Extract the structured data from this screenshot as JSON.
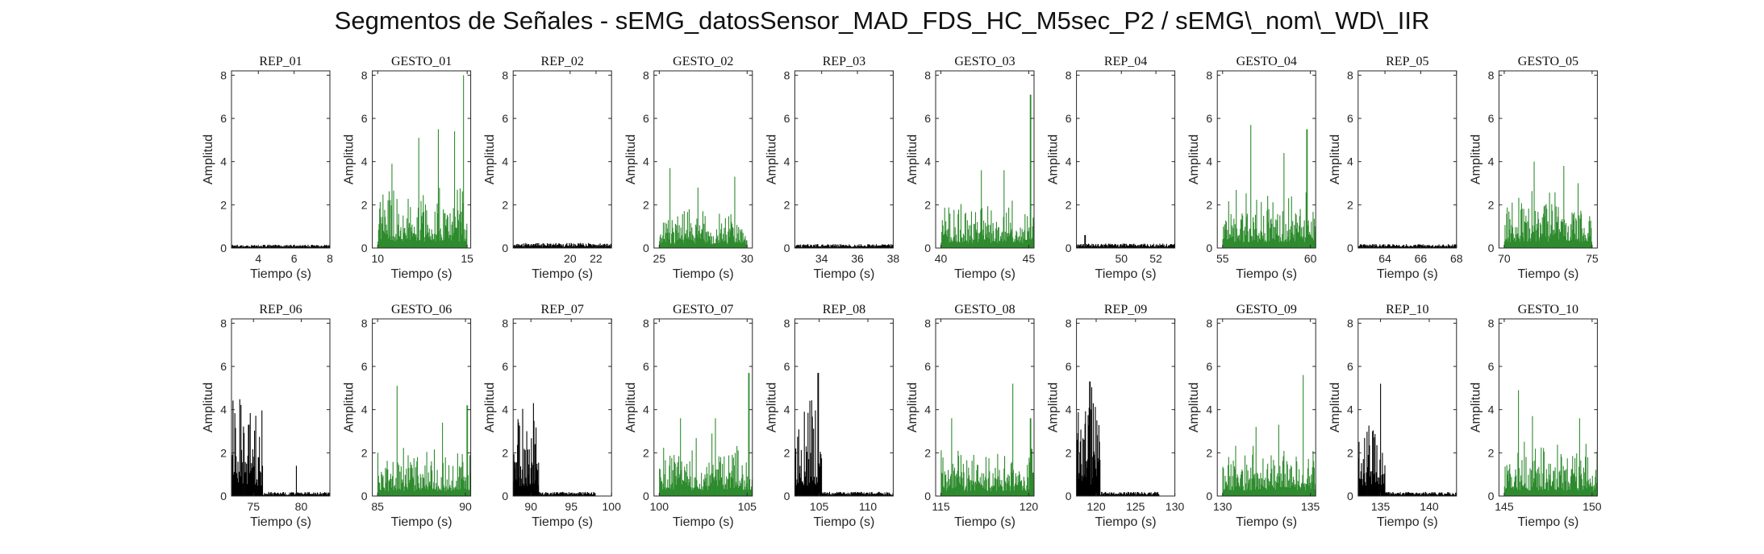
{
  "figure_title": "Segmentos de Señales - sEMG_datosSensor_MAD_FDS_HC_M5sec_P2 / sEMG\\_nom\\_WD\\_IIR",
  "colors": {
    "rep": "#000000",
    "gesto": "#2e8b2e",
    "axis": "#262626"
  },
  "chart_data": [
    {
      "type": "bar",
      "title": "REP_01",
      "xlabel": "Tiempo (s)",
      "ylabel": "Amplitud",
      "xlim": [
        2.5,
        8
      ],
      "ylim": [
        0,
        8.2
      ],
      "xticks": [
        4,
        6,
        8
      ],
      "yticks": [
        0,
        2,
        4,
        6,
        8
      ],
      "segment": [
        2.5,
        8
      ],
      "color_key": "rep",
      "level": 0.12,
      "peaks": [],
      "seed": 1
    },
    {
      "type": "bar",
      "title": "GESTO_01",
      "xlabel": "Tiempo (s)",
      "ylabel": "Amplitud",
      "xlim": [
        9.7,
        15.2
      ],
      "ylim": [
        0,
        8.2
      ],
      "xticks": [
        10,
        15
      ],
      "yticks": [
        0,
        2,
        4,
        6,
        8
      ],
      "segment": [
        10,
        15
      ],
      "color_key": "gesto",
      "level": 1.2,
      "peaks": [
        [
          10.8,
          3.9
        ],
        [
          12.3,
          5.1
        ],
        [
          13.4,
          5.5
        ],
        [
          14.3,
          5.4
        ],
        [
          14.8,
          8.0
        ]
      ],
      "seed": 2
    },
    {
      "type": "bar",
      "title": "REP_02",
      "xlabel": "Tiempo (s)",
      "ylabel": "Amplitud",
      "xlim": [
        15.6,
        23.2
      ],
      "ylim": [
        0,
        8.2
      ],
      "xticks": [
        20,
        22
      ],
      "yticks": [
        0,
        2,
        4,
        6,
        8
      ],
      "segment": [
        15.6,
        23.2
      ],
      "color_key": "rep",
      "level": 0.18,
      "peaks": [],
      "seed": 3
    },
    {
      "type": "bar",
      "title": "GESTO_02",
      "xlabel": "Tiempo (s)",
      "ylabel": "Amplitud",
      "xlim": [
        24.7,
        30.3
      ],
      "ylim": [
        0,
        8.2
      ],
      "xticks": [
        25,
        30
      ],
      "yticks": [
        0,
        2,
        4,
        6,
        8
      ],
      "segment": [
        25,
        30
      ],
      "color_key": "gesto",
      "level": 0.7,
      "peaks": [
        [
          25.6,
          3.7
        ],
        [
          27.2,
          2.8
        ],
        [
          29.3,
          3.3
        ]
      ],
      "seed": 4
    },
    {
      "type": "bar",
      "title": "REP_03",
      "xlabel": "Tiempo (s)",
      "ylabel": "Amplitud",
      "xlim": [
        32.5,
        38
      ],
      "ylim": [
        0,
        8.2
      ],
      "xticks": [
        34,
        36,
        38
      ],
      "yticks": [
        0,
        2,
        4,
        6,
        8
      ],
      "segment": [
        32.5,
        38
      ],
      "color_key": "rep",
      "level": 0.14,
      "peaks": [],
      "seed": 5
    },
    {
      "type": "bar",
      "title": "GESTO_03",
      "xlabel": "Tiempo (s)",
      "ylabel": "Amplitud",
      "xlim": [
        39.7,
        45.3
      ],
      "ylim": [
        0,
        8.2
      ],
      "xticks": [
        40,
        45
      ],
      "yticks": [
        0,
        2,
        4,
        6,
        8
      ],
      "segment": [
        40,
        45.3
      ],
      "color_key": "gesto",
      "level": 0.9,
      "peaks": [
        [
          42.3,
          3.6
        ],
        [
          43.6,
          3.6
        ],
        [
          45.1,
          7.1
        ]
      ],
      "seed": 6
    },
    {
      "type": "bar",
      "title": "REP_04",
      "xlabel": "Tiempo (s)",
      "ylabel": "Amplitud",
      "xlim": [
        47.4,
        53.1
      ],
      "ylim": [
        0,
        8.2
      ],
      "xticks": [
        50,
        52
      ],
      "yticks": [
        0,
        2,
        4,
        6,
        8
      ],
      "segment": [
        47.4,
        53.1
      ],
      "color_key": "rep",
      "level": 0.16,
      "peaks": [
        [
          47.9,
          0.6
        ]
      ],
      "seed": 7
    },
    {
      "type": "bar",
      "title": "GESTO_04",
      "xlabel": "Tiempo (s)",
      "ylabel": "Amplitud",
      "xlim": [
        54.7,
        60.3
      ],
      "ylim": [
        0,
        8.2
      ],
      "xticks": [
        55,
        60
      ],
      "yticks": [
        0,
        2,
        4,
        6,
        8
      ],
      "segment": [
        55,
        60.3
      ],
      "color_key": "gesto",
      "level": 1.1,
      "peaks": [
        [
          56.6,
          5.7
        ],
        [
          58.5,
          4.4
        ],
        [
          59.8,
          5.5
        ]
      ],
      "seed": 8
    },
    {
      "type": "bar",
      "title": "REP_05",
      "xlabel": "Tiempo (s)",
      "ylabel": "Amplitud",
      "xlim": [
        62.5,
        68
      ],
      "ylim": [
        0,
        8.2
      ],
      "xticks": [
        64,
        66,
        68
      ],
      "yticks": [
        0,
        2,
        4,
        6,
        8
      ],
      "segment": [
        62.5,
        68
      ],
      "color_key": "rep",
      "level": 0.14,
      "peaks": [],
      "seed": 9
    },
    {
      "type": "bar",
      "title": "GESTO_05",
      "xlabel": "Tiempo (s)",
      "ylabel": "Amplitud",
      "xlim": [
        69.7,
        75.3
      ],
      "ylim": [
        0,
        8.2
      ],
      "xticks": [
        70,
        75
      ],
      "yticks": [
        0,
        2,
        4,
        6,
        8
      ],
      "segment": [
        70,
        75
      ],
      "color_key": "gesto",
      "level": 1.1,
      "peaks": [
        [
          71.7,
          4.0
        ],
        [
          73.4,
          3.8
        ],
        [
          74.2,
          3.0
        ]
      ],
      "seed": 10
    },
    {
      "type": "bar",
      "title": "REP_06",
      "xlabel": "Tiempo (s)",
      "ylabel": "Amplitud",
      "xlim": [
        72.7,
        83
      ],
      "ylim": [
        0,
        8.2
      ],
      "xticks": [
        75,
        80
      ],
      "yticks": [
        0,
        2,
        4,
        6,
        8
      ],
      "segment": [
        72.7,
        83
      ],
      "color_key": "rep",
      "level": 0.15,
      "burst": [
        72.7,
        76
      ],
      "burst_level": 1.9,
      "peaks": [
        [
          74.5,
          3.3
        ],
        [
          79.5,
          1.4
        ]
      ],
      "seed": 11
    },
    {
      "type": "bar",
      "title": "GESTO_06",
      "xlabel": "Tiempo (s)",
      "ylabel": "Amplitud",
      "xlim": [
        84.7,
        90.3
      ],
      "ylim": [
        0,
        8.2
      ],
      "xticks": [
        85,
        90
      ],
      "yticks": [
        0,
        2,
        4,
        6,
        8
      ],
      "segment": [
        85,
        90.3
      ],
      "color_key": "gesto",
      "level": 0.9,
      "peaks": [
        [
          86.1,
          5.1
        ],
        [
          88.7,
          3.4
        ],
        [
          90.1,
          4.2
        ]
      ],
      "seed": 12
    },
    {
      "type": "bar",
      "title": "REP_07",
      "xlabel": "Tiempo (s)",
      "ylabel": "Amplitud",
      "xlim": [
        87.8,
        100
      ],
      "ylim": [
        0,
        8.2
      ],
      "xticks": [
        90,
        95,
        100
      ],
      "yticks": [
        0,
        2,
        4,
        6,
        8
      ],
      "segment": [
        87.8,
        98
      ],
      "color_key": "rep",
      "level": 0.15,
      "burst": [
        87.8,
        91
      ],
      "burst_level": 1.8,
      "peaks": [
        [
          90.3,
          4.3
        ],
        [
          89.5,
          3.0
        ]
      ],
      "seed": 13
    },
    {
      "type": "bar",
      "title": "GESTO_07",
      "xlabel": "Tiempo (s)",
      "ylabel": "Amplitud",
      "xlim": [
        99.7,
        105.3
      ],
      "ylim": [
        0,
        8.2
      ],
      "xticks": [
        100,
        105
      ],
      "yticks": [
        0,
        2,
        4,
        6,
        8
      ],
      "segment": [
        100,
        105.3
      ],
      "color_key": "gesto",
      "level": 1.1,
      "peaks": [
        [
          101.2,
          3.6
        ],
        [
          103.2,
          3.6
        ],
        [
          105.1,
          5.7
        ]
      ],
      "seed": 14
    },
    {
      "type": "bar",
      "title": "REP_08",
      "xlabel": "Tiempo (s)",
      "ylabel": "Amplitud",
      "xlim": [
        102.5,
        112.6
      ],
      "ylim": [
        0,
        8.2
      ],
      "xticks": [
        105,
        110
      ],
      "yticks": [
        0,
        2,
        4,
        6,
        8
      ],
      "segment": [
        102.5,
        112.6
      ],
      "color_key": "rep",
      "level": 0.15,
      "burst": [
        102.5,
        105.3
      ],
      "burst_level": 1.9,
      "peaks": [
        [
          104.9,
          5.7
        ],
        [
          103.5,
          3.9
        ]
      ],
      "seed": 15
    },
    {
      "type": "bar",
      "title": "GESTO_08",
      "xlabel": "Tiempo (s)",
      "ylabel": "Amplitud",
      "xlim": [
        114.7,
        120.3
      ],
      "ylim": [
        0,
        8.2
      ],
      "xticks": [
        115,
        120
      ],
      "yticks": [
        0,
        2,
        4,
        6,
        8
      ],
      "segment": [
        115,
        120.3
      ],
      "color_key": "gesto",
      "level": 0.9,
      "peaks": [
        [
          115.6,
          3.6
        ],
        [
          119.1,
          5.2
        ],
        [
          120.1,
          3.6
        ]
      ],
      "seed": 16
    },
    {
      "type": "bar",
      "title": "REP_09",
      "xlabel": "Tiempo (s)",
      "ylabel": "Amplitud",
      "xlim": [
        117.5,
        130
      ],
      "ylim": [
        0,
        8.2
      ],
      "xticks": [
        120,
        125,
        130
      ],
      "yticks": [
        0,
        2,
        4,
        6,
        8
      ],
      "segment": [
        117.5,
        128
      ],
      "color_key": "rep",
      "level": 0.15,
      "burst": [
        117.5,
        120.5
      ],
      "burst_level": 2.1,
      "peaks": [
        [
          119.2,
          5.3
        ],
        [
          120.1,
          3.5
        ]
      ],
      "seed": 17
    },
    {
      "type": "bar",
      "title": "GESTO_09",
      "xlabel": "Tiempo (s)",
      "ylabel": "Amplitud",
      "xlim": [
        129.7,
        135.3
      ],
      "ylim": [
        0,
        8.2
      ],
      "xticks": [
        130,
        135
      ],
      "yticks": [
        0,
        2,
        4,
        6,
        8
      ],
      "segment": [
        130,
        135.3
      ],
      "color_key": "gesto",
      "level": 1.0,
      "peaks": [
        [
          131.9,
          3.2
        ],
        [
          133.2,
          3.3
        ],
        [
          134.6,
          5.6
        ]
      ],
      "seed": 18
    },
    {
      "type": "bar",
      "title": "REP_10",
      "xlabel": "Tiempo (s)",
      "ylabel": "Amplitud",
      "xlim": [
        132.7,
        142.8
      ],
      "ylim": [
        0,
        8.2
      ],
      "xticks": [
        135,
        140
      ],
      "yticks": [
        0,
        2,
        4,
        6,
        8
      ],
      "segment": [
        132.7,
        142.8
      ],
      "color_key": "rep",
      "level": 0.15,
      "burst": [
        132.7,
        135.5
      ],
      "burst_level": 1.9,
      "peaks": [
        [
          135.0,
          5.2
        ],
        [
          134.2,
          3.0
        ]
      ],
      "seed": 19
    },
    {
      "type": "bar",
      "title": "GESTO_10",
      "xlabel": "Tiempo (s)",
      "ylabel": "Amplitud",
      "xlim": [
        144.7,
        150.3
      ],
      "ylim": [
        0,
        8.2
      ],
      "xticks": [
        145,
        150
      ],
      "yticks": [
        0,
        2,
        4,
        6,
        8
      ],
      "segment": [
        145,
        150.3
      ],
      "color_key": "gesto",
      "level": 1.0,
      "peaks": [
        [
          145.8,
          4.9
        ],
        [
          146.6,
          3.7
        ],
        [
          149.3,
          3.6
        ]
      ],
      "seed": 20
    }
  ]
}
